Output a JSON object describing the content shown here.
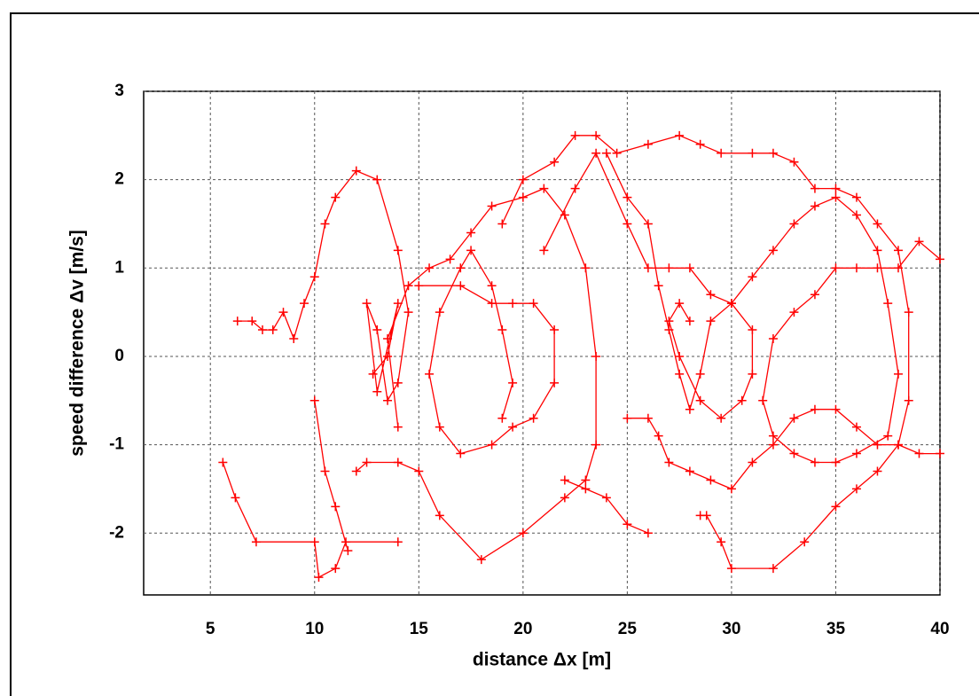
{
  "chart_data": {
    "type": "line",
    "marker": "+",
    "color": "#ff0000",
    "grid": true,
    "x_label": "distance Δx [m]",
    "y_label": "speed difference Δv [m/s]",
    "xlim": [
      1.8,
      40
    ],
    "ylim": [
      -2.7,
      3
    ],
    "xticks": [
      5,
      10,
      15,
      20,
      25,
      30,
      35,
      40
    ],
    "yticks": [
      -2,
      -1,
      0,
      1,
      2,
      3
    ],
    "x": [
      5.6,
      6.2,
      7.2,
      10,
      10.2,
      11,
      11.5,
      14,
      null,
      6.3,
      7,
      7.5,
      8,
      8.5,
      9,
      9.5,
      10,
      10.5,
      11,
      12,
      13,
      14,
      14.5,
      14,
      13.5,
      13,
      12.5,
      13,
      14,
      13.5,
      12.8,
      null,
      10,
      10.5,
      11,
      11.6,
      null,
      14,
      13.5,
      14.5,
      15.5,
      16.5,
      17.5,
      18.5,
      20,
      21,
      22,
      23,
      23.5,
      23.5,
      23,
      22,
      20,
      18,
      16,
      15,
      14,
      12.5,
      12,
      null,
      15,
      17,
      18.5,
      19.5,
      20.5,
      21.5,
      21.5,
      20.5,
      19.5,
      18.5,
      17,
      16,
      15.5,
      16,
      17,
      17.5,
      18.5,
      19,
      19.5,
      19,
      null,
      19,
      20,
      21.5,
      22.5,
      23.5,
      24.5,
      26,
      27.5,
      28.5,
      29.5,
      31,
      32,
      33,
      34,
      35,
      36,
      37,
      38,
      38.5,
      38.5,
      38,
      37,
      36,
      35,
      33.5,
      32,
      30,
      29.5,
      28.8,
      28.5,
      null,
      24,
      25,
      26,
      26.5,
      27,
      27.5,
      28,
      28.5,
      29,
      30,
      31,
      32,
      33,
      34,
      35,
      36,
      37,
      37.5,
      38,
      37.5,
      36,
      35,
      34,
      33,
      32,
      31.5,
      32,
      33,
      34,
      35,
      36,
      37,
      38,
      39,
      40,
      null,
      25,
      26,
      26.5,
      27,
      28,
      29,
      30,
      31,
      32,
      33,
      34,
      35,
      36,
      37,
      38,
      39,
      40,
      null,
      21,
      22.5,
      23.5,
      25,
      26,
      27,
      28,
      29,
      30,
      31,
      31,
      30.5,
      29.5,
      28.5,
      27.5,
      27,
      27.5,
      28,
      null,
      22,
      23,
      24,
      25,
      26
    ],
    "values": [
      -1.2,
      -1.6,
      -2.1,
      -2.1,
      -2.5,
      -2.4,
      -2.1,
      -2.1,
      null,
      0.4,
      0.4,
      0.3,
      0.3,
      0.5,
      0.2,
      0.6,
      0.9,
      1.5,
      1.8,
      2.1,
      2.0,
      1.2,
      0.5,
      -0.3,
      -0.5,
      0.3,
      0.6,
      -0.4,
      0.6,
      0,
      -0.2,
      null,
      -0.5,
      -1.3,
      -1.7,
      -2.2,
      null,
      -0.8,
      0.2,
      0.8,
      1.0,
      1.1,
      1.4,
      1.7,
      1.8,
      1.9,
      1.6,
      1.0,
      0,
      -1,
      -1.4,
      -1.6,
      -2,
      -2.3,
      -1.8,
      -1.3,
      -1.2,
      -1.2,
      -1.3,
      null,
      0.8,
      0.8,
      0.6,
      0.6,
      0.6,
      0.3,
      -0.3,
      -0.7,
      -0.8,
      -1.0,
      -1.1,
      -0.8,
      -0.2,
      0.5,
      1.0,
      1.2,
      0.8,
      0.3,
      -0.3,
      -0.7,
      null,
      1.5,
      2.0,
      2.2,
      2.5,
      2.5,
      2.3,
      2.4,
      2.5,
      2.4,
      2.3,
      2.3,
      2.3,
      2.2,
      1.9,
      1.9,
      1.8,
      1.5,
      1.2,
      0.5,
      -0.5,
      -1,
      -1.3,
      -1.5,
      -1.7,
      -2.1,
      -2.4,
      -2.4,
      -2.1,
      -1.8,
      -1.8,
      null,
      2.3,
      1.8,
      1.5,
      0.8,
      0.3,
      -0.2,
      -0.6,
      -0.2,
      0.4,
      0.6,
      0.9,
      1.2,
      1.5,
      1.7,
      1.8,
      1.6,
      1.2,
      0.6,
      -0.2,
      -0.9,
      -1.1,
      -1.2,
      -1.2,
      -1.1,
      -0.9,
      -0.5,
      0.2,
      0.5,
      0.7,
      1.0,
      1.0,
      1.0,
      1.0,
      1.3,
      1.1,
      null,
      -0.7,
      -0.7,
      -0.9,
      -1.2,
      -1.3,
      -1.4,
      -1.5,
      -1.2,
      -1.0,
      -0.7,
      -0.6,
      -0.6,
      -0.8,
      -1.0,
      -1.0,
      -1.1,
      -1.1,
      null,
      1.2,
      1.9,
      2.3,
      1.5,
      1.0,
      1.0,
      1.0,
      0.7,
      0.6,
      0.3,
      -0.2,
      -0.5,
      -0.7,
      -0.5,
      0,
      0.4,
      0.6,
      0.4,
      null,
      -1.4,
      -1.5,
      -1.6,
      -1.9,
      -2.0
    ]
  }
}
